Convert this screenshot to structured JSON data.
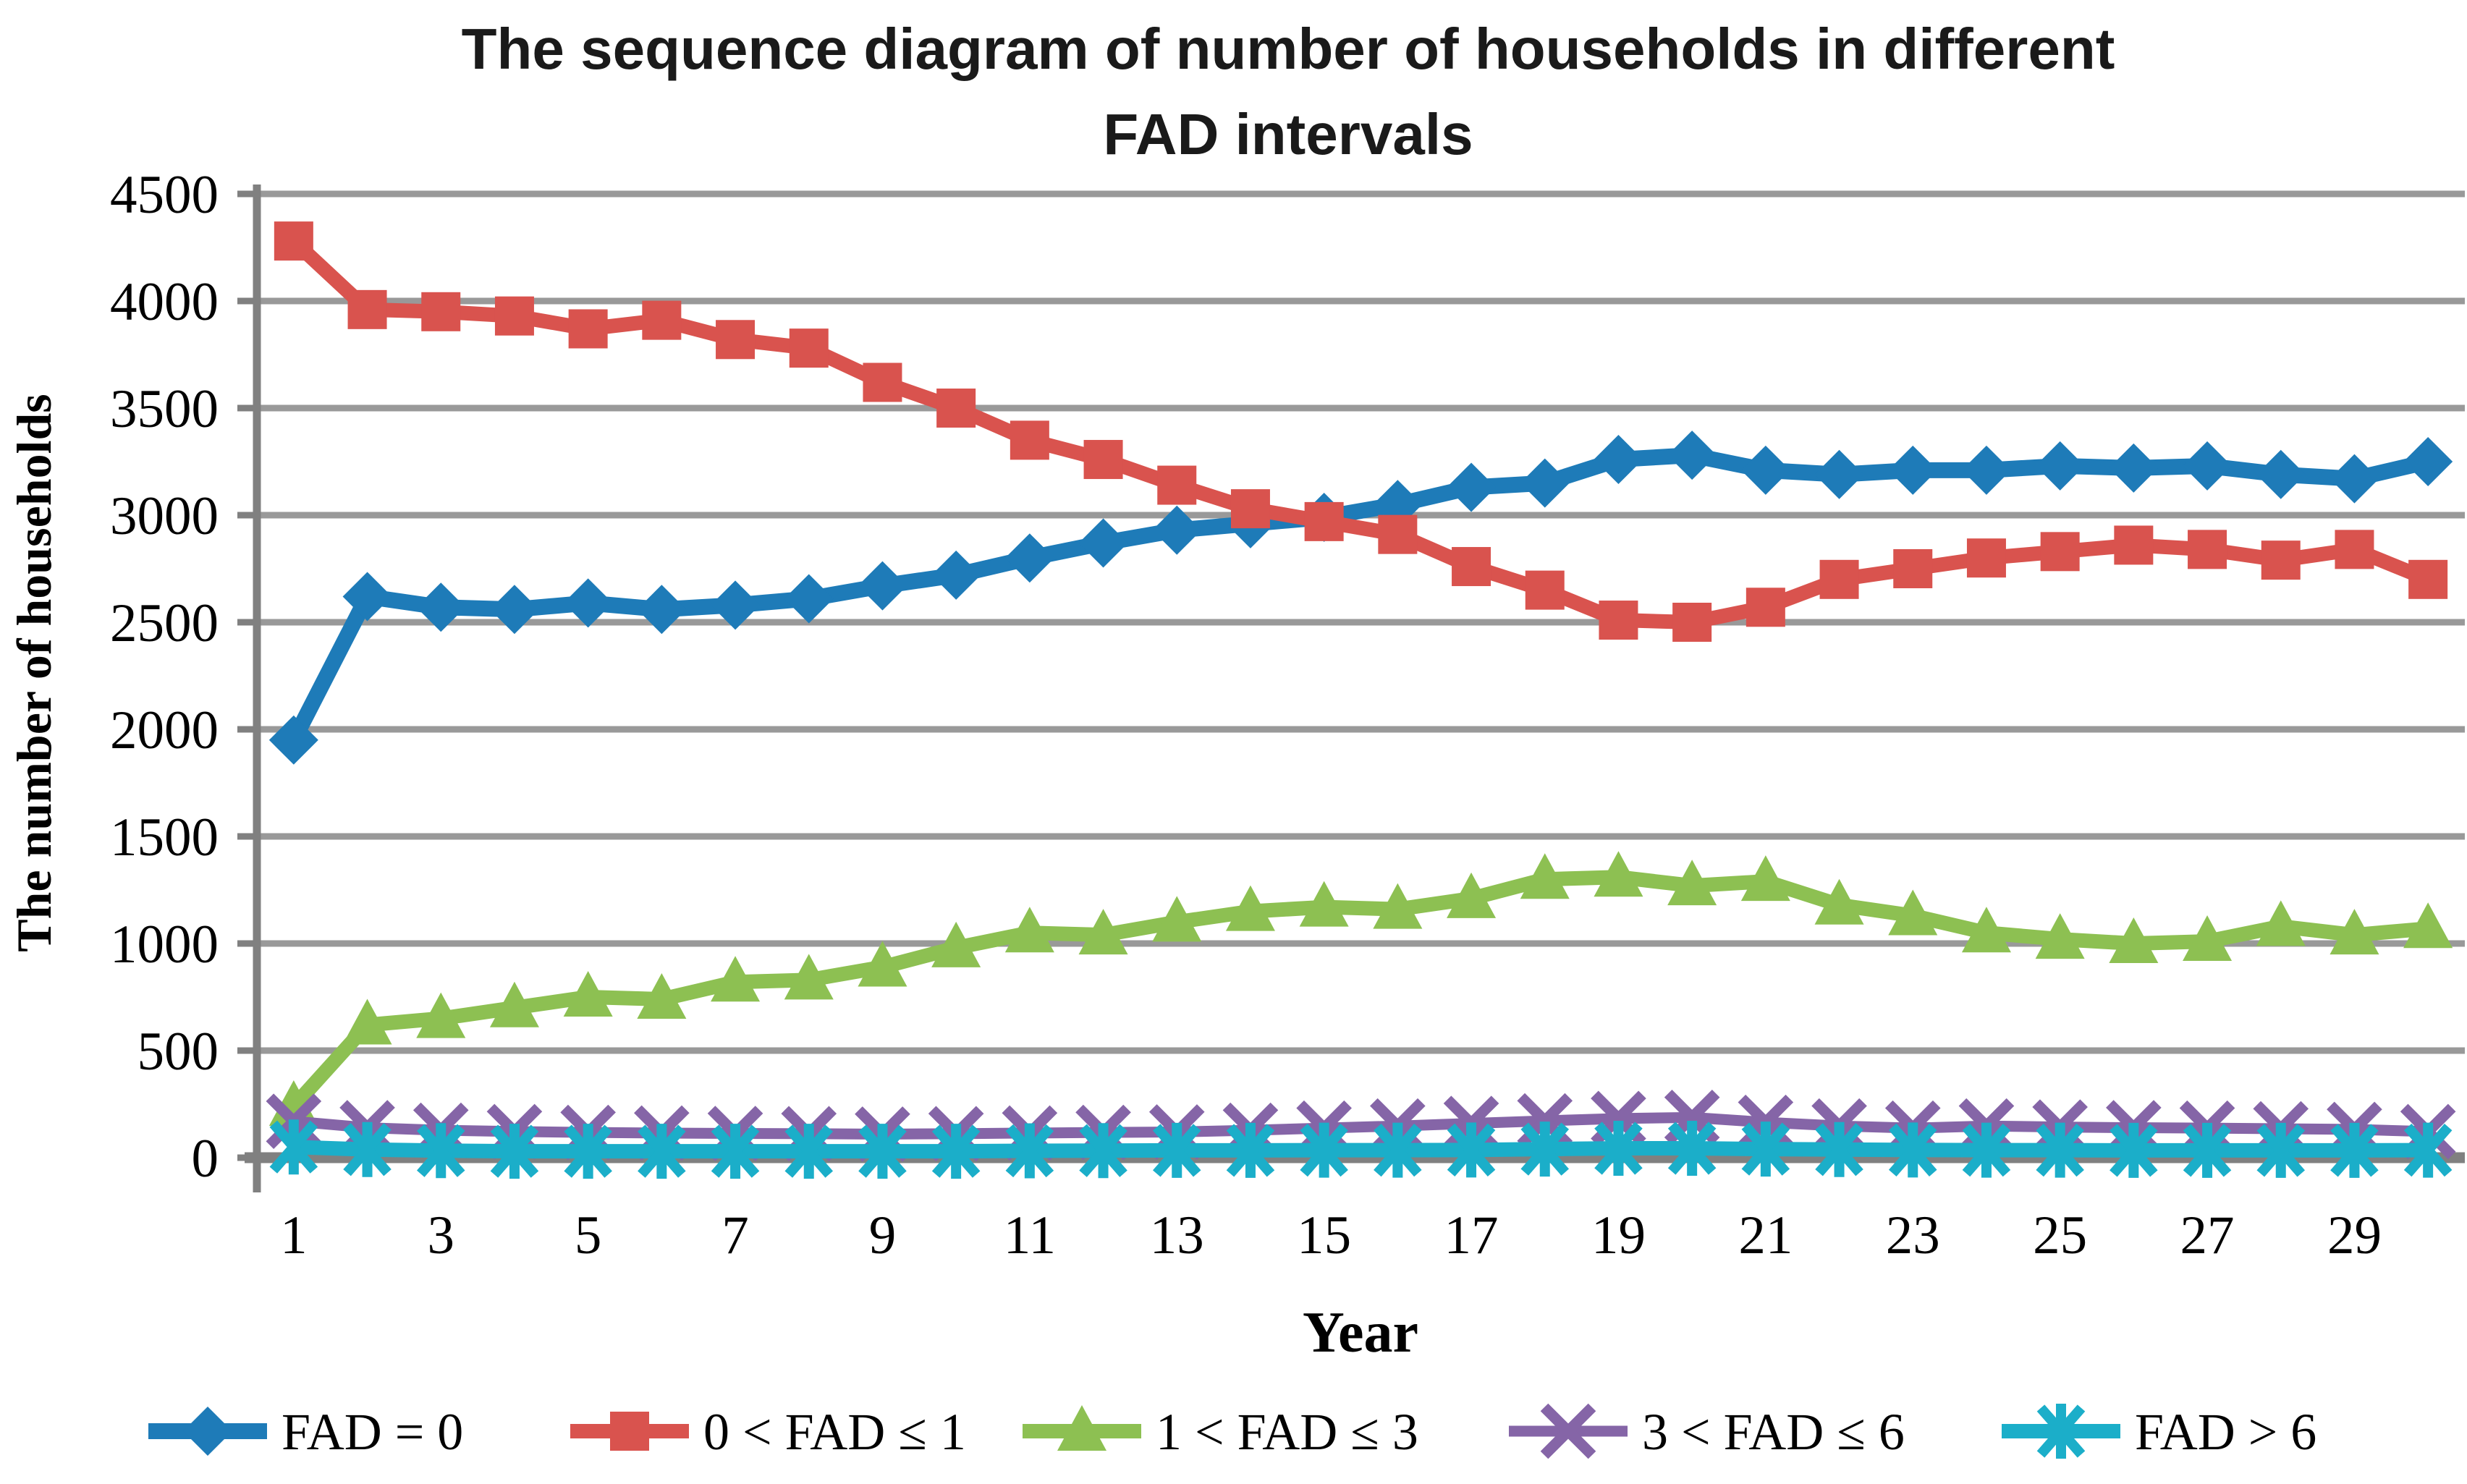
{
  "title": {
    "line1": "The sequence diagram of number of households in different",
    "line2": "FAD intervals"
  },
  "y_axis": {
    "label": "The number of households",
    "ticks": [
      "0",
      "500",
      "1000",
      "1500",
      "2000",
      "2500",
      "3000",
      "3500",
      "4000",
      "4500"
    ],
    "min": 0,
    "max": 4500,
    "step": 500
  },
  "x_axis": {
    "label": "Year",
    "tick_labels": [
      "1",
      "3",
      "5",
      "7",
      "9",
      "11",
      "13",
      "15",
      "17",
      "19",
      "21",
      "23",
      "25",
      "27",
      "29"
    ]
  },
  "colors": {
    "blue": "#1E7BB8",
    "red": "#D9534E",
    "green": "#8DC052",
    "purple": "#8565A7",
    "cyan": "#1BAEC9",
    "grid": "#999999",
    "axis": "#808080",
    "text": "#000000"
  },
  "chart_data": {
    "type": "line",
    "title": "The sequence diagram of number of households in different FAD intervals",
    "xlabel": "Year",
    "ylabel": "The number of households",
    "ylim": [
      0,
      4500
    ],
    "grid": "horizontal",
    "legend_position": "bottom",
    "x": [
      1,
      2,
      3,
      4,
      5,
      6,
      7,
      8,
      9,
      10,
      11,
      12,
      13,
      14,
      15,
      16,
      17,
      18,
      19,
      20,
      21,
      22,
      23,
      24,
      25,
      26,
      27,
      28,
      29,
      30
    ],
    "series": [
      {
        "id": "fad-0",
        "label": "FAD = 0",
        "color": "blue",
        "marker": "diamond",
        "values": [
          1950,
          2620,
          2570,
          2560,
          2590,
          2560,
          2580,
          2610,
          2670,
          2720,
          2800,
          2870,
          2930,
          2960,
          2990,
          3050,
          3130,
          3150,
          3260,
          3280,
          3210,
          3190,
          3210,
          3210,
          3230,
          3220,
          3230,
          3190,
          3170,
          3250
        ]
      },
      {
        "id": "fad-0-1",
        "label": "0 < FAD ≤ 1",
        "color": "red",
        "marker": "square",
        "values": [
          4280,
          3960,
          3950,
          3930,
          3870,
          3910,
          3820,
          3780,
          3620,
          3500,
          3350,
          3260,
          3140,
          3030,
          2970,
          2910,
          2760,
          2650,
          2510,
          2500,
          2570,
          2700,
          2750,
          2800,
          2830,
          2860,
          2840,
          2790,
          2840,
          2700
        ]
      },
      {
        "id": "fad-1-3",
        "label": "1 < FAD ≤ 3",
        "color": "green",
        "marker": "triangle",
        "values": [
          240,
          620,
          650,
          700,
          750,
          740,
          820,
          830,
          890,
          980,
          1050,
          1040,
          1100,
          1150,
          1170,
          1160,
          1210,
          1300,
          1310,
          1270,
          1290,
          1180,
          1130,
          1050,
          1020,
          1000,
          1010,
          1080,
          1040,
          1070
        ]
      },
      {
        "id": "fad-3-6",
        "label": "3 < FAD ≤ 6",
        "color": "purple",
        "marker": "x",
        "values": [
          170,
          140,
          128,
          122,
          118,
          115,
          113,
          112,
          110,
          112,
          115,
          118,
          120,
          128,
          138,
          148,
          160,
          172,
          183,
          188,
          165,
          148,
          138,
          148,
          143,
          140,
          138,
          135,
          132,
          122
        ]
      },
      {
        "id": "fad-6plus",
        "label": "FAD > 6",
        "color": "cyan",
        "marker": "asterisk",
        "values": [
          50,
          38,
          33,
          30,
          30,
          30,
          30,
          30,
          30,
          30,
          32,
          33,
          34,
          34,
          35,
          35,
          36,
          40,
          44,
          44,
          40,
          38,
          36,
          35,
          35,
          34,
          34,
          34,
          34,
          35
        ]
      }
    ]
  }
}
